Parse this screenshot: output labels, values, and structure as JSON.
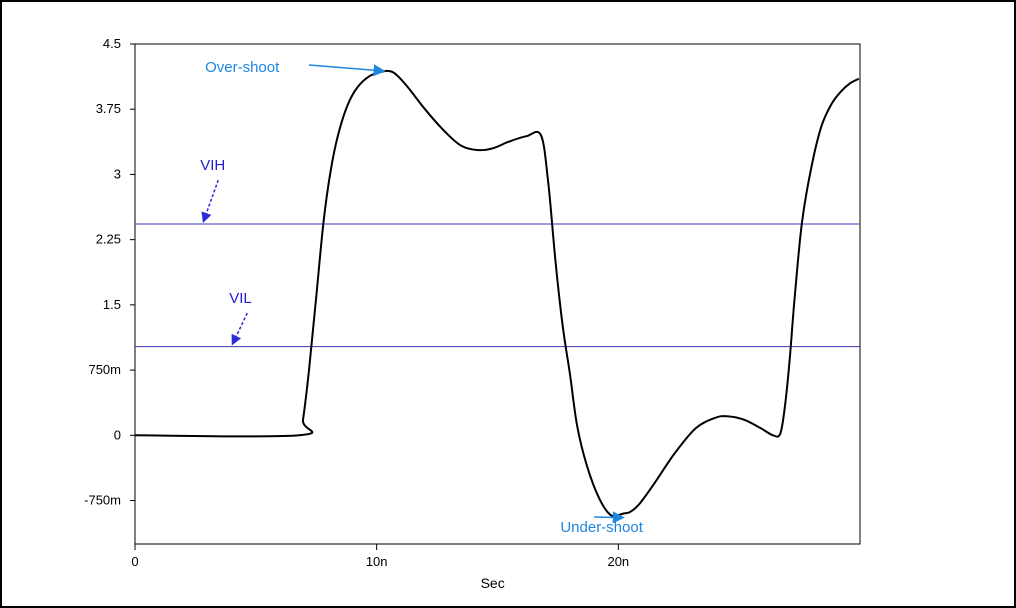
{
  "chart_data": {
    "type": "line",
    "title": "",
    "xlabel": "Sec",
    "ylabel": "",
    "xlim": [
      0,
      30
    ],
    "ylim": [
      -1.25,
      4.5
    ],
    "grid": false,
    "x_ticks": [
      {
        "value": 0,
        "label": "0"
      },
      {
        "value": 10,
        "label": "10n"
      },
      {
        "value": 20,
        "label": "20n"
      }
    ],
    "y_ticks": [
      {
        "value": 4.5,
        "label": "4.5"
      },
      {
        "value": 3.75,
        "label": "3.75"
      },
      {
        "value": 3,
        "label": "3"
      },
      {
        "value": 2.25,
        "label": "2.25"
      },
      {
        "value": 1.5,
        "label": "1.5"
      },
      {
        "value": 0.75,
        "label": "750m"
      },
      {
        "value": 0,
        "label": "0"
      },
      {
        "value": -0.75,
        "label": "-750m"
      }
    ],
    "series": [
      {
        "color": "#000000",
        "x": [
          0,
          6.8,
          6.95,
          7.2,
          7.5,
          7.8,
          8.1,
          8.4,
          8.8,
          9.2,
          9.7,
          10.2,
          10.5,
          10.8,
          11.3,
          12.0,
          12.8,
          13.5,
          14.2,
          14.8,
          15.5,
          16.2,
          16.8,
          17.1,
          17.4,
          17.7,
          18.0,
          18.3,
          18.7,
          19.2,
          19.7,
          20.2,
          20.5,
          20.9,
          21.5,
          22.3,
          23.2,
          24.0,
          24.5,
          25.2,
          25.9,
          26.4,
          26.7,
          26.9,
          27.1,
          27.3,
          27.6,
          28.0,
          28.4,
          28.8,
          29.2,
          29.6,
          29.95
        ],
        "y": [
          0,
          0,
          0.18,
          0.75,
          1.6,
          2.45,
          3.05,
          3.45,
          3.8,
          4.0,
          4.13,
          4.18,
          4.19,
          4.15,
          4.0,
          3.75,
          3.5,
          3.33,
          3.28,
          3.3,
          3.38,
          3.44,
          3.45,
          2.9,
          2.0,
          1.25,
          0.7,
          0.1,
          -0.35,
          -0.72,
          -0.92,
          -0.9,
          -0.88,
          -0.78,
          -0.55,
          -0.22,
          0.08,
          0.2,
          0.22,
          0.18,
          0.08,
          0.0,
          0.02,
          0.35,
          0.9,
          1.6,
          2.45,
          3.1,
          3.55,
          3.8,
          3.95,
          4.05,
          4.1
        ]
      }
    ],
    "reference_lines": [
      {
        "name": "VIH",
        "y": 2.43,
        "color": "#3a3ab8",
        "label_x": 2.7,
        "label_y": 3.05
      },
      {
        "name": "VIL",
        "y": 1.02,
        "color": "#3a3ab8",
        "label_x": 3.9,
        "label_y": 1.52
      }
    ],
    "annotations": [
      {
        "text": "Over-shoot",
        "color": "#1f86e0",
        "text_x": 3.0,
        "text_y": 4.3,
        "point_x": 10.4,
        "point_y": 4.2
      },
      {
        "text": "Under-shoot",
        "color": "#1f86e0",
        "text_x": 17.5,
        "text_y": -1.25,
        "point_x": 20.3,
        "point_y": -0.9
      }
    ],
    "colors": {
      "curve": "#000000",
      "reference": "#3a3ab8",
      "reference_text": "#1f1fd0",
      "annotation": "#1f86e0",
      "axis": "#000000"
    }
  }
}
